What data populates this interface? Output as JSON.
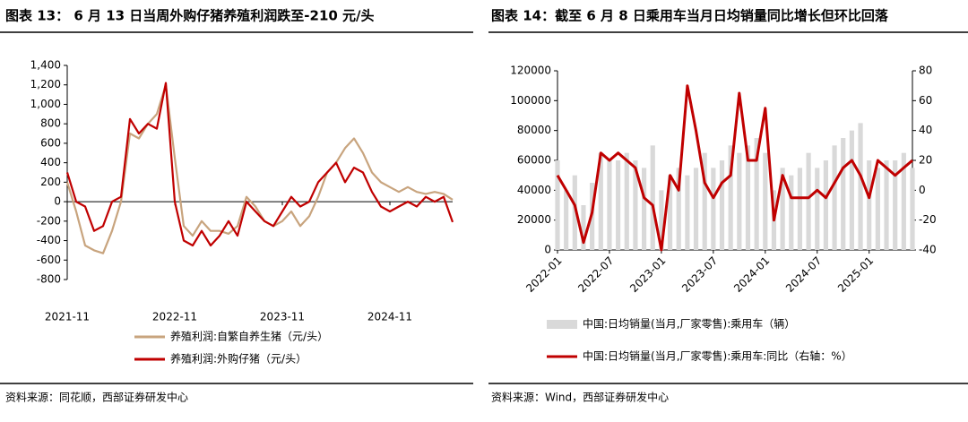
{
  "chart_data": [
    {
      "type": "line",
      "title": "图表 13： 6 月 13 日当周外购仔猪养殖利润跌至-210 元/头",
      "source": "资料来源：同花顺，西部证券研发中心",
      "x": [
        "2021-11",
        "2021-12",
        "2022-01",
        "2022-02",
        "2022-03",
        "2022-04",
        "2022-05",
        "2022-06",
        "2022-07",
        "2022-08",
        "2022-09",
        "2022-10",
        "2022-11",
        "2022-12",
        "2023-01",
        "2023-02",
        "2023-03",
        "2023-04",
        "2023-05",
        "2023-06",
        "2023-07",
        "2023-08",
        "2023-09",
        "2023-10",
        "2023-11",
        "2023-12",
        "2024-01",
        "2024-02",
        "2024-03",
        "2024-04",
        "2024-05",
        "2024-06",
        "2024-07",
        "2024-08",
        "2024-09",
        "2024-10",
        "2024-11",
        "2024-12",
        "2025-01",
        "2025-02",
        "2025-03",
        "2025-04",
        "2025-05",
        "2025-06"
      ],
      "xticks": [
        "2021-11",
        "2022-11",
        "2023-11",
        "2024-11"
      ],
      "ylim": [
        -800,
        1400
      ],
      "yticks": [
        -800,
        -600,
        -400,
        -200,
        0,
        200,
        400,
        600,
        800,
        {
          "value": 1000,
          "label": "1,000"
        },
        {
          "value": 1200,
          "label": "1,200"
        },
        {
          "value": 1400,
          "label": "1,400"
        }
      ],
      "series": [
        {
          "name": "养殖利润:自繁自养生猪（元/头）",
          "color": "#c8a47e",
          "values": [
            200,
            -100,
            -450,
            -500,
            -530,
            -300,
            0,
            700,
            650,
            800,
            900,
            1200,
            450,
            -250,
            -350,
            -200,
            -300,
            -300,
            -330,
            -250,
            50,
            -50,
            -200,
            -250,
            -200,
            -100,
            -250,
            -150,
            50,
            300,
            400,
            550,
            650,
            500,
            300,
            200,
            150,
            100,
            150,
            100,
            80,
            100,
            80,
            20
          ]
        },
        {
          "name": "养殖利润:外购仔猪（元/头）",
          "color": "#c00000",
          "values": [
            300,
            0,
            -50,
            -300,
            -250,
            0,
            50,
            850,
            700,
            800,
            750,
            1220,
            0,
            -400,
            -450,
            -300,
            -450,
            -350,
            -200,
            -350,
            0,
            -100,
            -200,
            -250,
            -100,
            50,
            -50,
            0,
            200,
            300,
            400,
            200,
            350,
            300,
            100,
            -50,
            -100,
            -50,
            0,
            -50,
            50,
            0,
            50,
            -210
          ]
        }
      ]
    },
    {
      "type": "combo",
      "title": "图表 14：截至 6 月 8 日乘用车当月日均销量同比增长但环比回落",
      "source": "资料来源：Wind，西部证券研发中心",
      "x": [
        "2022-01",
        "2022-02",
        "2022-03",
        "2022-04",
        "2022-05",
        "2022-06",
        "2022-07",
        "2022-08",
        "2022-09",
        "2022-10",
        "2022-11",
        "2022-12",
        "2023-01",
        "2023-02",
        "2023-03",
        "2023-04",
        "2023-05",
        "2023-06",
        "2023-07",
        "2023-08",
        "2023-09",
        "2023-10",
        "2023-11",
        "2023-12",
        "2024-01",
        "2024-02",
        "2024-03",
        "2024-04",
        "2024-05",
        "2024-06",
        "2024-07",
        "2024-08",
        "2024-09",
        "2024-10",
        "2024-11",
        "2024-12",
        "2025-01",
        "2025-02",
        "2025-03",
        "2025-04",
        "2025-05",
        "2025-06"
      ],
      "xticks": [
        "2022-01",
        "2022-07",
        "2023-01",
        "2023-07",
        "2024-01",
        "2024-07",
        "2025-01"
      ],
      "ylim": [
        0,
        120000
      ],
      "yticks": [
        0,
        20000,
        40000,
        60000,
        80000,
        100000,
        120000
      ],
      "y2lim": [
        -40,
        80
      ],
      "y2ticks": [
        -40,
        -20,
        0,
        20,
        40,
        60,
        80
      ],
      "series": [
        {
          "name": "中国:日均销量(当月,厂家零售):乘用车（辆）",
          "type": "bar",
          "color": "#d9d9d9",
          "values": [
            60000,
            40000,
            50000,
            30000,
            45000,
            65000,
            60000,
            60000,
            65000,
            60000,
            55000,
            70000,
            40000,
            50000,
            55000,
            50000,
            55000,
            65000,
            55000,
            60000,
            70000,
            65000,
            70000,
            75000,
            65000,
            40000,
            55000,
            50000,
            55000,
            65000,
            55000,
            60000,
            70000,
            75000,
            80000,
            85000,
            60000,
            55000,
            60000,
            60000,
            65000,
            55000
          ]
        },
        {
          "name": "中国:日均销量(当月,厂家零售):乘用车:同比（右轴：%）",
          "type": "line",
          "axis": "y2",
          "color": "#c00000",
          "values": [
            10,
            0,
            -10,
            -35,
            -15,
            25,
            20,
            25,
            20,
            15,
            -5,
            -10,
            -40,
            10,
            0,
            70,
            40,
            5,
            -5,
            5,
            10,
            65,
            20,
            20,
            55,
            -20,
            10,
            -5,
            -5,
            -5,
            0,
            -5,
            5,
            15,
            20,
            10,
            -5,
            20,
            15,
            10,
            15,
            20
          ]
        }
      ]
    }
  ]
}
